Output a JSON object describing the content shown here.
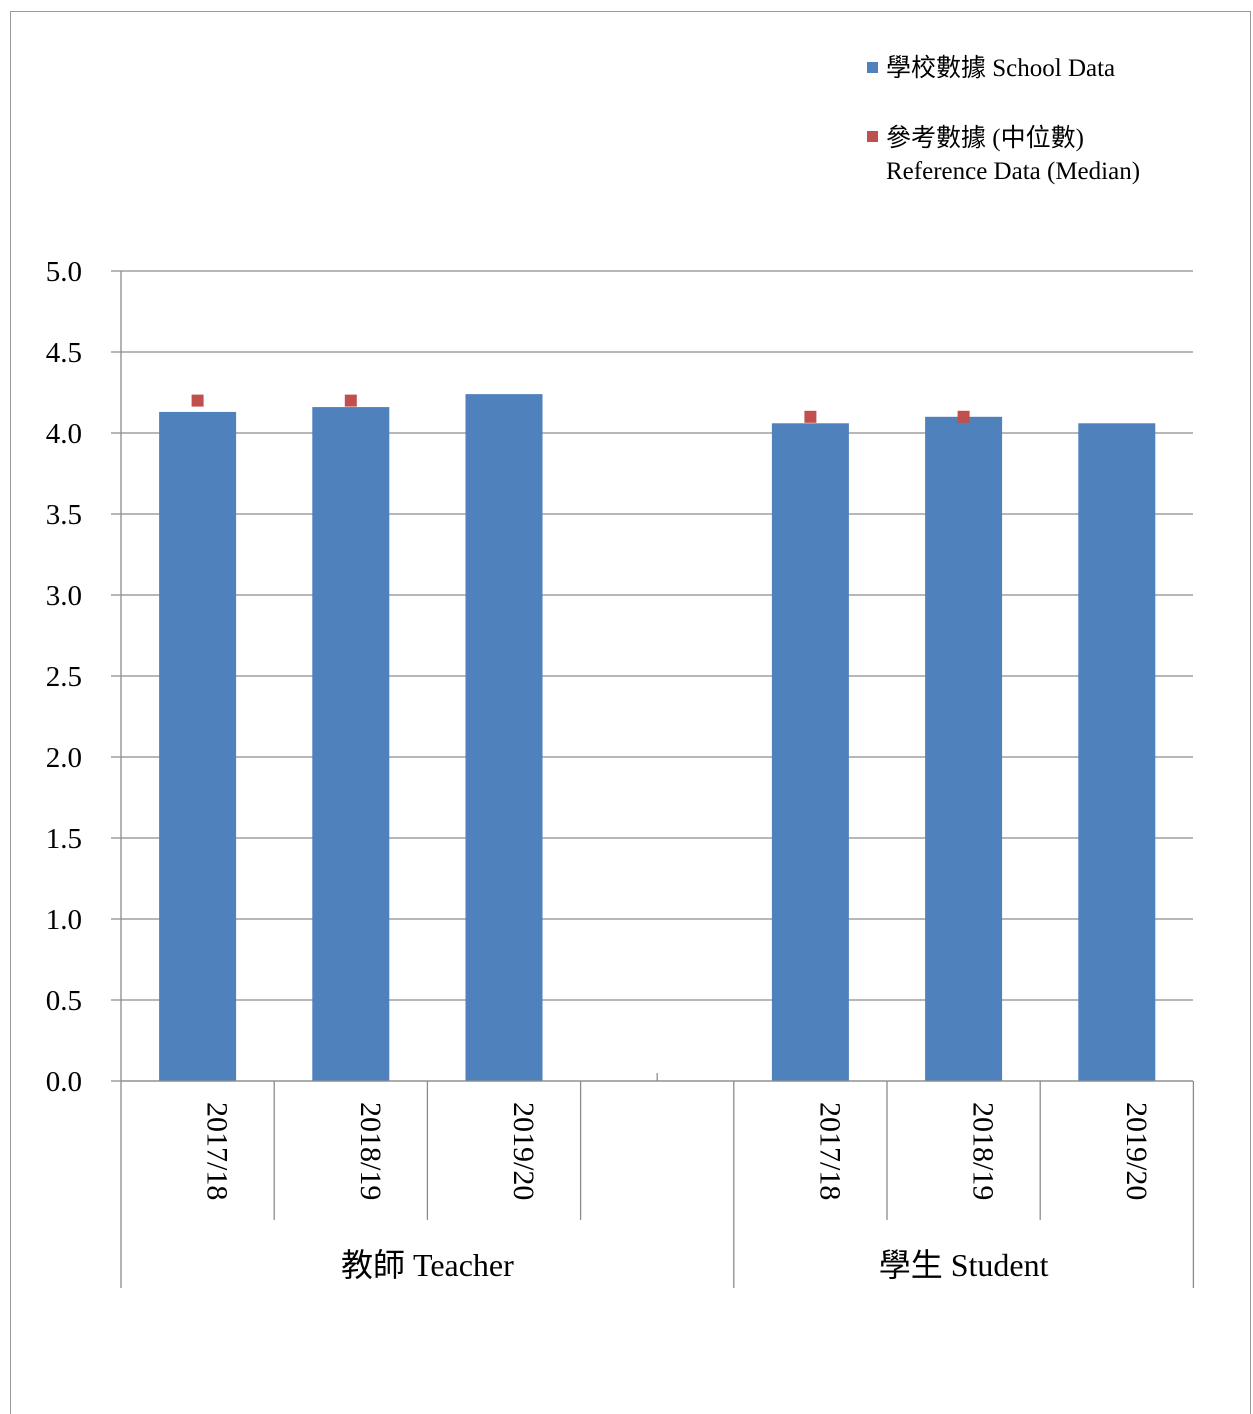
{
  "chart_data": {
    "type": "bar",
    "groups": [
      {
        "label": "教師  Teacher",
        "categories": [
          "2017/18",
          "2018/19",
          "2019/20"
        ]
      },
      {
        "label": "學生  Student",
        "categories": [
          "2017/18",
          "2018/19",
          "2019/20"
        ]
      }
    ],
    "series": [
      {
        "name": "學校數據 School Data",
        "kind": "bar",
        "color": "#4f81bd",
        "values": [
          4.13,
          4.16,
          4.24,
          4.06,
          4.1,
          4.06
        ]
      },
      {
        "name": "參考數據 (中位數)",
        "name_line2": "Reference Data (Median)",
        "kind": "marker",
        "color": "#c0504d",
        "values": [
          4.2,
          4.2,
          null,
          4.1,
          4.1,
          null
        ]
      }
    ],
    "ylim": [
      0,
      5
    ],
    "yticks": [
      "0.0",
      "0.5",
      "1.0",
      "1.5",
      "2.0",
      "2.5",
      "3.0",
      "3.5",
      "4.0",
      "4.5",
      "5.0"
    ],
    "grid": true,
    "legend_position": "top-right"
  }
}
